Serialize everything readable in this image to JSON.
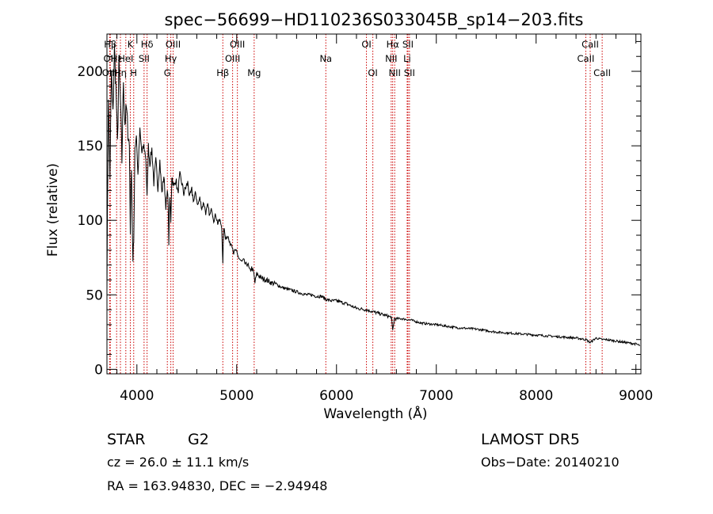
{
  "chart_data": {
    "type": "line",
    "title": "spec−56699−HD110236S033045B_sp14−203.fits",
    "xlabel": "Wavelength (Å)",
    "ylabel": "Flux (relative)",
    "xlim": [
      3700,
      9050
    ],
    "ylim": [
      -3,
      225
    ],
    "x_ticks": [
      4000,
      5000,
      6000,
      7000,
      8000,
      9000
    ],
    "y_ticks": [
      0,
      50,
      100,
      150,
      200
    ],
    "grid": false,
    "series": [
      {
        "x": [
          3700,
          3715,
          3730,
          3745,
          3760,
          3775,
          3790,
          3805,
          3820,
          3835,
          3850,
          3865,
          3880,
          3895,
          3910,
          3925,
          3934,
          3945,
          3960,
          3968,
          3980,
          3995,
          4010,
          4030,
          4050,
          4070,
          4090,
          4102,
          4115,
          4130,
          4150,
          4170,
          4190,
          4210,
          4230,
          4250,
          4270,
          4290,
          4310,
          4320,
          4330,
          4340,
          4350,
          4370,
          4390,
          4410,
          4430,
          4450,
          4470,
          4490,
          4510,
          4530,
          4550,
          4570,
          4590,
          4610,
          4630,
          4650,
          4670,
          4690,
          4710,
          4730,
          4750,
          4770,
          4790,
          4810,
          4830,
          4850,
          4861,
          4870,
          4890,
          4910,
          4930,
          4950,
          4970,
          4990,
          5010,
          5030,
          5050,
          5070,
          5090,
          5110,
          5130,
          5150,
          5170,
          5183,
          5200,
          5220,
          5250,
          5300,
          5350,
          5400,
          5450,
          5500,
          5550,
          5600,
          5650,
          5700,
          5750,
          5800,
          5850,
          5893,
          5950,
          6000,
          6100,
          6200,
          6300,
          6400,
          6500,
          6550,
          6563,
          6580,
          6650,
          6750,
          6850,
          7000,
          7200,
          7400,
          7600,
          7800,
          8000,
          8200,
          8400,
          8498,
          8542,
          8600,
          8662,
          8700,
          8800,
          8900,
          9000,
          9040
        ],
        "y": [
          60,
          185,
          130,
          200,
          170,
          215,
          190,
          150,
          205,
          180,
          140,
          195,
          165,
          175,
          160,
          150,
          95,
          140,
          70,
          85,
          150,
          158,
          130,
          160,
          145,
          150,
          142,
          115,
          150,
          138,
          148,
          125,
          140,
          122,
          140,
          118,
          130,
          110,
          120,
          85,
          115,
          100,
          130,
          122,
          128,
          118,
          130,
          125,
          118,
          122,
          125,
          115,
          120,
          113,
          118,
          110,
          115,
          108,
          112,
          105,
          110,
          103,
          108,
          100,
          104,
          98,
          100,
          96,
          70,
          95,
          88,
          90,
          84,
          85,
          78,
          80,
          76,
          74,
          72,
          73,
          70,
          71,
          66,
          68,
          65,
          58,
          64,
          63,
          61,
          60,
          58,
          57,
          55,
          54,
          53,
          52,
          51,
          50,
          50,
          49,
          49,
          47,
          46,
          46,
          44,
          41,
          40,
          38,
          36,
          35,
          26,
          34,
          34,
          33,
          31,
          30,
          28,
          27,
          25,
          24,
          23,
          22,
          21,
          20,
          18,
          21,
          20,
          20,
          19,
          18,
          17,
          16
        ]
      }
    ],
    "line_markers": [
      {
        "label": "Hβ",
        "x": 3734,
        "row": 0
      },
      {
        "label": "OII",
        "x": 3727,
        "row": 1
      },
      {
        "label": "OIII",
        "x": 3727,
        "row": 2
      },
      {
        "label": "Hε",
        "x": 3797,
        "row": 1
      },
      {
        "label": "Hη",
        "x": 3835,
        "row": 2
      },
      {
        "label": "K",
        "x": 3934,
        "row": 0
      },
      {
        "label": "HeI",
        "x": 3889,
        "row": 1
      },
      {
        "label": "Hδ",
        "x": 4102,
        "row": 0
      },
      {
        "label": "SII",
        "x": 4072,
        "row": 1
      },
      {
        "label": "H",
        "x": 3968,
        "row": 2
      },
      {
        "label": "OIII",
        "x": 4363,
        "row": 0
      },
      {
        "label": "Hγ",
        "x": 4340,
        "row": 1
      },
      {
        "label": "G",
        "x": 4305,
        "row": 2
      },
      {
        "label": "Hβ",
        "x": 4861,
        "row": 2
      },
      {
        "label": "OIII",
        "x": 5007,
        "row": 0
      },
      {
        "label": "OIII",
        "x": 4959,
        "row": 1
      },
      {
        "label": "Mg",
        "x": 5175,
        "row": 2
      },
      {
        "label": "Na",
        "x": 5893,
        "row": 1
      },
      {
        "label": "OI",
        "x": 6300,
        "row": 0
      },
      {
        "label": "OI",
        "x": 6364,
        "row": 2
      },
      {
        "label": "Hα",
        "x": 6563,
        "row": 0
      },
      {
        "label": "NII",
        "x": 6548,
        "row": 1
      },
      {
        "label": "NII",
        "x": 6583,
        "row": 2
      },
      {
        "label": "SII",
        "x": 6716,
        "row": 0
      },
      {
        "label": "Li",
        "x": 6708,
        "row": 1
      },
      {
        "label": "SII",
        "x": 6731,
        "row": 2
      },
      {
        "label": "CaII",
        "x": 8542,
        "row": 0
      },
      {
        "label": "CaII",
        "x": 8498,
        "row": 1
      },
      {
        "label": "CaII",
        "x": 8662,
        "row": 2
      }
    ]
  },
  "info": {
    "class": "STAR",
    "subclass": "G2",
    "cz": "cz = 26.0 ± 11.1 km/s",
    "radec": "RA = 163.94830, DEC =  −2.94948",
    "survey": "LAMOST DR5",
    "obsdate": "Obs−Date: 20140210"
  },
  "colors": {
    "line": "#000000",
    "marker": "#cc0000",
    "background": "#ffffff"
  }
}
